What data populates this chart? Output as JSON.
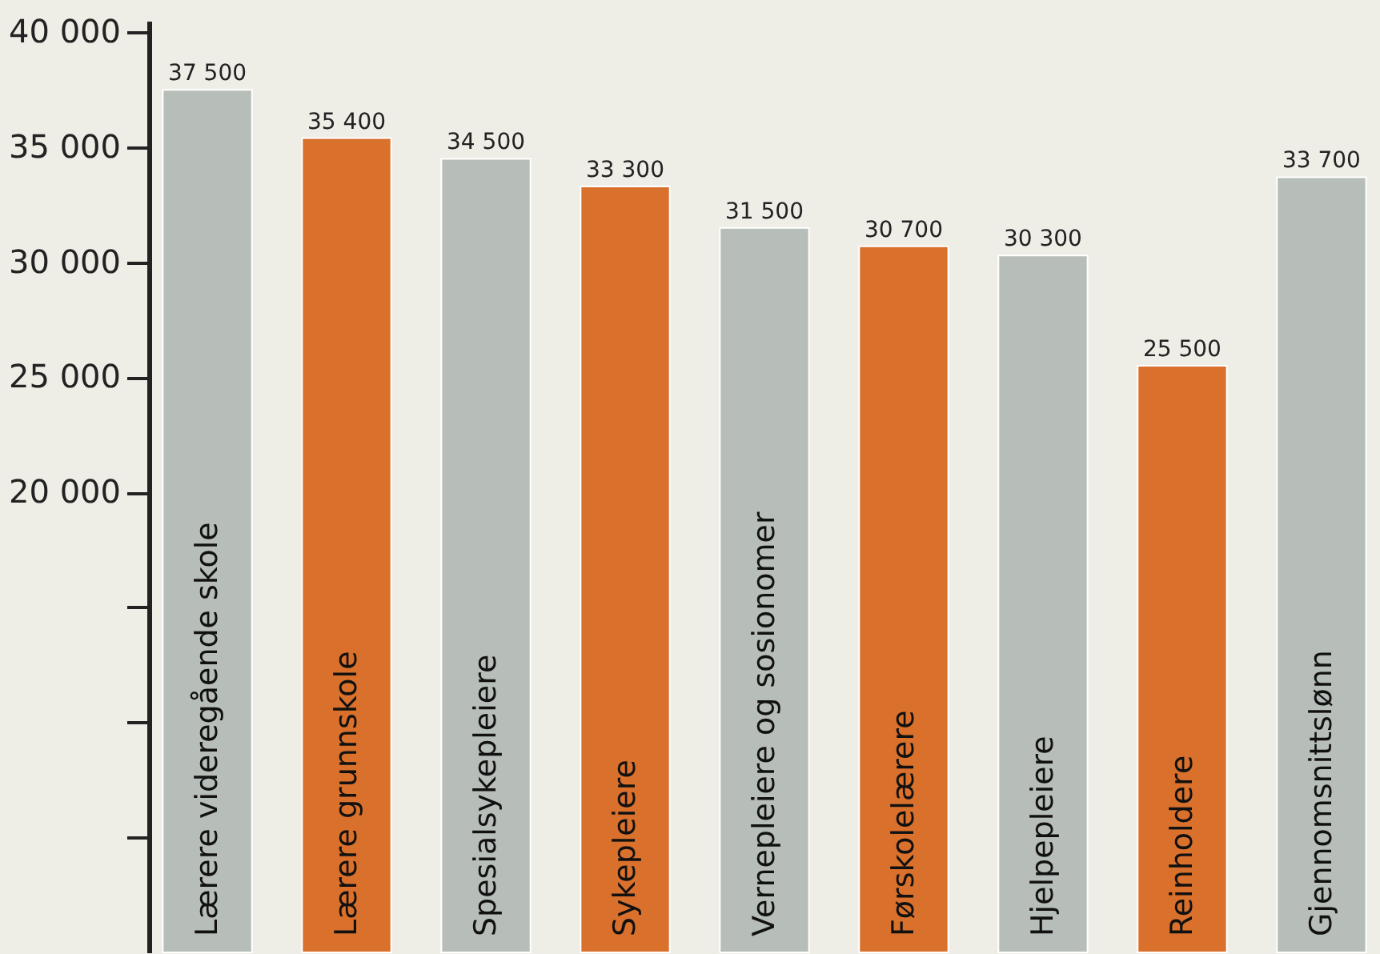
{
  "chart_data": {
    "type": "bar",
    "categories": [
      "Lærere videregående skole",
      "Lærere grunnskole",
      "Spesialsykepleiere",
      "Sykepleiere",
      "Vernepleiere og sosionomer",
      "Førskolelærere",
      "Hjelpepleiere",
      "Reinholdere",
      "Gjennomsnittslønn"
    ],
    "values": [
      37500,
      35400,
      34500,
      33300,
      31500,
      30700,
      30300,
      25500,
      33700
    ],
    "colors": [
      "#b7bdb9",
      "#d9702c",
      "#b7bdb9",
      "#d9702c",
      "#b7bdb9",
      "#d9702c",
      "#b7bdb9",
      "#d9702c",
      "#b7bdb9"
    ],
    "value_labels": [
      "37 500",
      "35 400",
      "34 500",
      "33 300",
      "31 500",
      "30 700",
      "30 300",
      "25 500",
      "33 700"
    ],
    "ylim": [
      0,
      40500
    ],
    "yticks": [
      {
        "value": 40000,
        "label": "40 000"
      },
      {
        "value": 35000,
        "label": "35 000"
      },
      {
        "value": 30000,
        "label": "30 000"
      },
      {
        "value": 25000,
        "label": "25 000"
      },
      {
        "value": 20000,
        "label": "20 000"
      },
      {
        "value": 15000,
        "label": null
      },
      {
        "value": 10000,
        "label": null
      },
      {
        "value": 5000,
        "label": null
      }
    ],
    "tick_labels": "y",
    "grid": false
  }
}
